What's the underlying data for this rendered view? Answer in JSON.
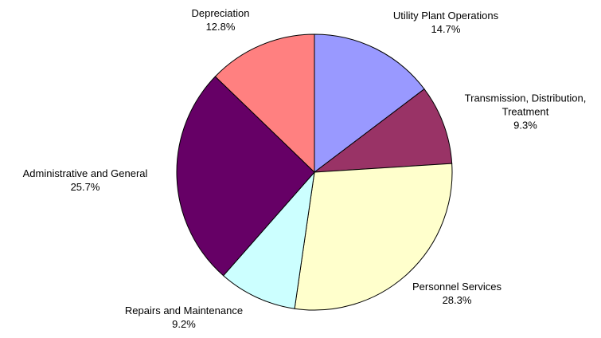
{
  "chart_data": {
    "type": "pie",
    "categories": [
      "Utility Plant Operations",
      "Transmission, Distribution, Treatment",
      "Personnel Services",
      "Repairs and Maintenance",
      "Administrative and General",
      "Depreciation"
    ],
    "values": [
      14.7,
      9.3,
      28.3,
      9.2,
      25.7,
      12.8
    ],
    "value_labels": [
      "14.7%",
      "9.3%",
      "28.3%",
      "9.2%",
      "25.7%",
      "12.8%"
    ],
    "colors": [
      "#9999ff",
      "#993366",
      "#ffffcc",
      "#ccffff",
      "#660066",
      "#ff8080"
    ]
  }
}
